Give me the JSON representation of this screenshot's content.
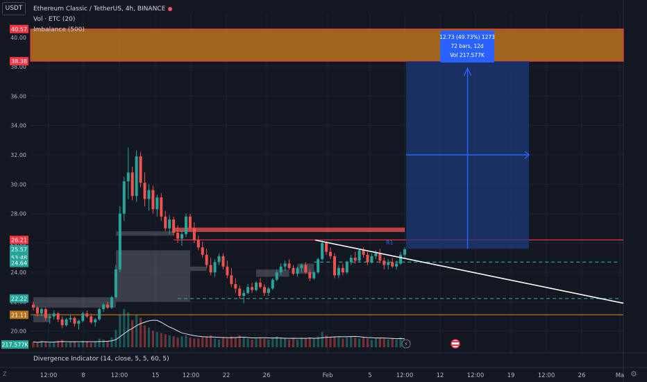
{
  "header": {
    "currency_button": "USDT",
    "symbol_title": "Ethereum Classic / TetherUS, 4h, BINANCE",
    "indicators": [
      "Vol · ETC (20)",
      "Imbalance (500)"
    ]
  },
  "lower_pane": {
    "label": "Divergence Indicator (14, close, 5, 5, 60, 5)"
  },
  "scale_button": "Z",
  "colors": {
    "bg": "#131722",
    "up": "#26a69a",
    "down": "#ef5350",
    "zone": "#b8721c",
    "zone_border": "#f23645",
    "target_box": "#1e3a78",
    "accent": "#2962ff"
  },
  "chart_data": {
    "type": "candlestick",
    "symbol": "ETC/USDT",
    "timeframe": "4h",
    "y_ticks": [
      "40.00",
      "38.00",
      "36.00",
      "34.00",
      "32.00",
      "30.00",
      "28.00",
      "26.00",
      "24.00",
      "22.00",
      "20.00"
    ],
    "y_range": [
      18.9,
      41.6
    ],
    "x_ticks": [
      "12:00",
      "8",
      "12:00",
      "15",
      "12:00",
      "22",
      "26",
      "Feb",
      "5",
      "12:00",
      "12",
      "12:00",
      "19",
      "12:00",
      "26",
      "Ma"
    ],
    "price_labels": [
      {
        "text": "40.57",
        "color": "#f23645",
        "value": 40.57
      },
      {
        "text": "38.38",
        "color": "#f23645",
        "value": 38.38
      },
      {
        "text": "26.21",
        "color": "#f23645",
        "value": 26.21
      },
      {
        "text": "25.57",
        "color": "#26a69a",
        "value": 25.57
      },
      {
        "text": "53:48",
        "color": "#26a69a",
        "value": 25.0
      },
      {
        "text": "24.64",
        "color": "#26a69a",
        "value": 24.64
      },
      {
        "text": "22.22",
        "color": "#26a69a",
        "value": 22.22
      },
      {
        "text": "21.11",
        "color": "#b8721c",
        "value": 21.11
      }
    ],
    "volume_label": "217.577K",
    "resistance_label": "R1",
    "zones": {
      "supply_zone": [
        38.38,
        40.57
      ],
      "resistance_line": 26.21,
      "support_dashed": [
        24.7,
        22.22
      ],
      "orange_line": 21.11
    },
    "measure_tooltip": [
      "12.73 (49.73%) 1273",
      "72 bars, 12d",
      "Vol 217.577K"
    ],
    "candles": [
      [
        21.8,
        22.0,
        21.4,
        21.6
      ],
      [
        21.6,
        21.7,
        21.0,
        21.2
      ],
      [
        21.2,
        21.6,
        21.0,
        21.5
      ],
      [
        21.5,
        21.6,
        20.7,
        20.9
      ],
      [
        20.9,
        21.2,
        20.5,
        21.0
      ],
      [
        21.0,
        21.4,
        20.8,
        21.2
      ],
      [
        21.2,
        21.3,
        20.6,
        20.8
      ],
      [
        20.8,
        21.0,
        20.2,
        20.4
      ],
      [
        20.4,
        20.9,
        20.3,
        20.8
      ],
      [
        20.8,
        21.1,
        20.6,
        20.9
      ],
      [
        20.9,
        21.0,
        20.3,
        20.5
      ],
      [
        20.5,
        20.8,
        20.1,
        20.7
      ],
      [
        20.7,
        21.3,
        20.6,
        21.2
      ],
      [
        21.2,
        21.4,
        20.9,
        21.0
      ],
      [
        21.0,
        21.2,
        20.5,
        20.6
      ],
      [
        20.6,
        20.9,
        20.3,
        20.8
      ],
      [
        20.8,
        21.6,
        20.7,
        21.5
      ],
      [
        21.5,
        21.9,
        21.3,
        21.8
      ],
      [
        21.8,
        22.0,
        21.5,
        21.6
      ],
      [
        21.6,
        22.4,
        21.5,
        22.3
      ],
      [
        22.3,
        24.5,
        22.2,
        24.2
      ],
      [
        24.2,
        28.5,
        24.0,
        28.0
      ],
      [
        28.0,
        30.5,
        27.5,
        30.2
      ],
      [
        30.2,
        32.5,
        29.0,
        30.8
      ],
      [
        30.8,
        31.2,
        28.9,
        29.2
      ],
      [
        29.2,
        32.3,
        28.8,
        31.9
      ],
      [
        31.9,
        32.2,
        29.8,
        30.1
      ],
      [
        30.1,
        30.8,
        28.5,
        29.0
      ],
      [
        29.0,
        30.0,
        28.2,
        29.6
      ],
      [
        29.6,
        29.9,
        28.0,
        28.3
      ],
      [
        28.3,
        29.3,
        27.8,
        29.1
      ],
      [
        29.1,
        29.4,
        27.5,
        27.8
      ],
      [
        27.8,
        28.2,
        26.8,
        27.0
      ],
      [
        27.0,
        27.9,
        26.6,
        27.6
      ],
      [
        27.6,
        27.8,
        26.5,
        26.7
      ],
      [
        26.7,
        27.2,
        26.0,
        26.3
      ],
      [
        26.3,
        26.9,
        25.8,
        26.6
      ],
      [
        26.6,
        28.0,
        26.4,
        27.8
      ],
      [
        27.8,
        28.0,
        26.8,
        27.0
      ],
      [
        27.0,
        27.4,
        26.0,
        26.2
      ],
      [
        26.2,
        26.5,
        25.5,
        25.7
      ],
      [
        25.7,
        26.1,
        25.0,
        25.2
      ],
      [
        25.2,
        25.6,
        24.3,
        24.5
      ],
      [
        24.5,
        25.0,
        23.8,
        24.0
      ],
      [
        24.0,
        24.9,
        23.7,
        24.7
      ],
      [
        24.7,
        25.3,
        24.5,
        25.1
      ],
      [
        25.1,
        25.3,
        24.2,
        24.4
      ],
      [
        24.4,
        24.8,
        23.6,
        23.8
      ],
      [
        23.8,
        24.3,
        23.0,
        23.2
      ],
      [
        23.2,
        23.6,
        22.6,
        22.9
      ],
      [
        22.9,
        23.1,
        22.2,
        22.4
      ],
      [
        22.4,
        22.8,
        21.9,
        22.6
      ],
      [
        22.6,
        23.2,
        22.5,
        23.0
      ],
      [
        23.0,
        23.3,
        22.6,
        22.8
      ],
      [
        22.8,
        23.4,
        22.7,
        23.3
      ],
      [
        23.3,
        23.6,
        22.9,
        23.0
      ],
      [
        23.0,
        23.2,
        22.4,
        22.6
      ],
      [
        22.6,
        23.0,
        22.4,
        22.9
      ],
      [
        22.9,
        23.6,
        22.8,
        23.5
      ],
      [
        23.5,
        24.2,
        23.4,
        24.0
      ],
      [
        24.0,
        24.6,
        23.8,
        24.4
      ],
      [
        24.4,
        24.8,
        24.1,
        24.6
      ],
      [
        24.6,
        24.9,
        24.2,
        24.3
      ],
      [
        24.3,
        24.5,
        23.8,
        23.9
      ],
      [
        23.9,
        24.4,
        23.7,
        24.3
      ],
      [
        24.3,
        24.6,
        24.0,
        24.5
      ],
      [
        24.5,
        24.7,
        23.9,
        24.0
      ],
      [
        24.0,
        24.2,
        23.4,
        23.6
      ],
      [
        23.6,
        24.1,
        23.5,
        24.0
      ],
      [
        24.0,
        25.0,
        23.9,
        24.9
      ],
      [
        24.9,
        26.2,
        24.8,
        26.0
      ],
      [
        26.0,
        26.1,
        25.2,
        25.4
      ],
      [
        25.4,
        25.7,
        24.9,
        25.1
      ],
      [
        25.1,
        25.3,
        23.6,
        23.8
      ],
      [
        23.8,
        24.5,
        23.6,
        24.3
      ],
      [
        24.3,
        24.6,
        23.8,
        24.0
      ],
      [
        24.0,
        24.8,
        23.9,
        24.7
      ],
      [
        24.7,
        25.2,
        24.5,
        25.0
      ],
      [
        25.0,
        25.4,
        24.6,
        24.8
      ],
      [
        24.8,
        25.6,
        24.7,
        25.5
      ],
      [
        25.5,
        25.7,
        25.0,
        25.2
      ],
      [
        25.2,
        25.4,
        24.5,
        24.7
      ],
      [
        24.7,
        25.3,
        24.6,
        25.1
      ],
      [
        25.1,
        25.5,
        24.9,
        25.3
      ],
      [
        25.3,
        25.6,
        24.6,
        24.8
      ],
      [
        24.8,
        25.0,
        24.2,
        24.5
      ],
      [
        24.5,
        24.9,
        24.2,
        24.7
      ],
      [
        24.7,
        25.0,
        24.3,
        24.4
      ],
      [
        24.4,
        24.8,
        24.2,
        24.6
      ],
      [
        24.6,
        25.4,
        24.5,
        25.2
      ],
      [
        25.2,
        25.7,
        25.0,
        25.57
      ]
    ],
    "volumes": [
      5,
      4,
      6,
      5,
      4,
      5,
      6,
      7,
      4,
      5,
      5,
      4,
      6,
      5,
      4,
      5,
      8,
      7,
      6,
      9,
      16,
      30,
      35,
      32,
      25,
      30,
      27,
      20,
      18,
      15,
      14,
      13,
      12,
      11,
      10,
      9,
      10,
      11,
      9,
      8,
      8,
      9,
      10,
      11,
      8,
      7,
      9,
      8,
      10,
      9,
      11,
      9,
      8,
      7,
      8,
      9,
      8,
      7,
      9,
      10,
      9,
      8,
      7,
      8,
      7,
      9,
      8,
      9,
      8,
      10,
      14,
      11,
      9,
      10,
      9,
      8,
      9,
      10,
      9,
      8,
      9,
      8,
      7,
      8,
      9,
      8,
      7,
      8,
      7,
      9,
      6
    ]
  }
}
